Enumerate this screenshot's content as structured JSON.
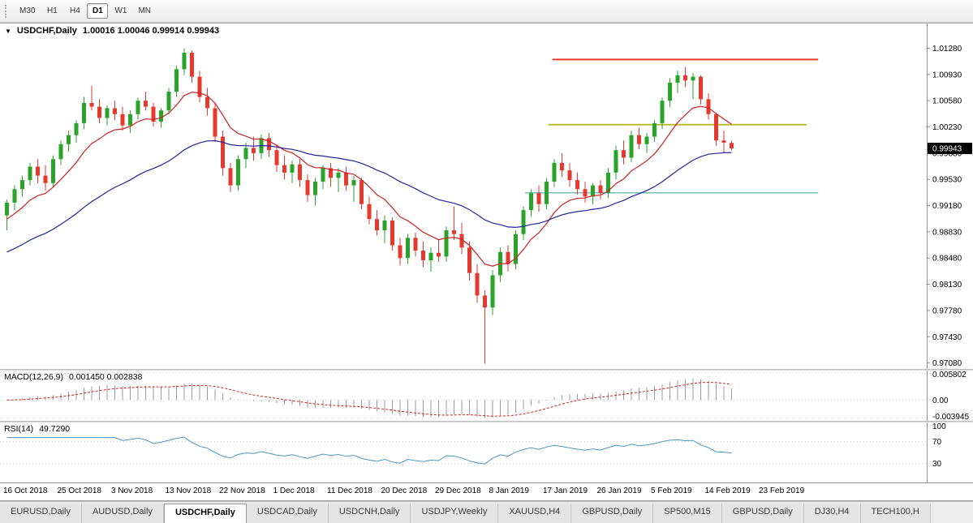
{
  "toolbar": {
    "timeframes": [
      {
        "label": "M30",
        "active": false
      },
      {
        "label": "H1",
        "active": false
      },
      {
        "label": "H4",
        "active": false
      },
      {
        "label": "D1",
        "active": true
      },
      {
        "label": "W1",
        "active": false
      },
      {
        "label": "MN",
        "active": false
      }
    ]
  },
  "chart": {
    "title_symbol": "USDCHF,Daily",
    "title_ohlc": "1.00016 1.00046 0.99914 0.99943",
    "price_badge": "0.99943"
  },
  "colors": {
    "candle_up": "#29a329",
    "candle_down": "#e5392d",
    "ma_fast": "#cc2222",
    "ma_slow": "#24249c",
    "macd_histogram": "#9b9b9b",
    "macd_signal": "#cc2222",
    "rsi_line": "#4a96c8",
    "badge_bg": "#000000",
    "badge_text": "#ffffff"
  },
  "chart_data": {
    "type": "candlestick",
    "title": "USDCHF,Daily",
    "symbol": "USDCHF",
    "timeframe": "Daily",
    "price_axis": {
      "view_max": 1.0161,
      "view_min": 0.97,
      "tick_labels": [
        "1.01280",
        "1.00930",
        "1.00580",
        "1.00230",
        "0.99880",
        "0.99530",
        "0.99180",
        "0.98830",
        "0.98480",
        "0.98130",
        "0.97780",
        "0.97430",
        "0.97080"
      ]
    },
    "x_labels": [
      {
        "text": "16 Oct 2018",
        "index": 0
      },
      {
        "text": "25 Oct 2018",
        "index": 7
      },
      {
        "text": "3 Nov 2018",
        "index": 14
      },
      {
        "text": "13 Nov 2018",
        "index": 21
      },
      {
        "text": "22 Nov 2018",
        "index": 28
      },
      {
        "text": "1 Dec 2018",
        "index": 35
      },
      {
        "text": "11 Dec 2018",
        "index": 42
      },
      {
        "text": "20 Dec 2018",
        "index": 49
      },
      {
        "text": "29 Dec 2018",
        "index": 56
      },
      {
        "text": "8 Jan 2019",
        "index": 63
      },
      {
        "text": "17 Jan 2019",
        "index": 70
      },
      {
        "text": "26 Jan 2019",
        "index": 77
      },
      {
        "text": "5 Feb 2019",
        "index": 84
      },
      {
        "text": "14 Feb 2019",
        "index": 91
      },
      {
        "text": "23 Feb 2019",
        "index": 98
      }
    ],
    "hlines": [
      {
        "name": "upper-resistance-line",
        "price": 1.0113,
        "start_index": 71,
        "end_index": 105.5,
        "color": "#f23b2f",
        "width": 2
      },
      {
        "name": "middle-pivot-line",
        "price": 1.0026,
        "start_index": 70.5,
        "end_index": 104,
        "color": "#bcbe2c",
        "width": 2
      },
      {
        "name": "lower-support-line",
        "price": 0.9935,
        "start_index": 67.5,
        "end_index": 105.5,
        "color": "#2f9e9e",
        "width": 1
      }
    ],
    "candles": [
      [
        0.9905,
        0.9926,
        0.9885,
        0.9922
      ],
      [
        0.9922,
        0.9945,
        0.9912,
        0.994
      ],
      [
        0.994,
        0.9958,
        0.993,
        0.9952
      ],
      [
        0.9952,
        0.9975,
        0.9945,
        0.997
      ],
      [
        0.997,
        0.998,
        0.9948,
        0.9958
      ],
      [
        0.9958,
        0.9972,
        0.9938,
        0.9948
      ],
      [
        0.9948,
        0.9985,
        0.9942,
        0.998
      ],
      [
        0.998,
        1.0005,
        0.9972,
        1.0
      ],
      [
        1.0,
        1.0018,
        0.999,
        1.0012
      ],
      [
        1.0012,
        1.0032,
        1.0002,
        1.0028
      ],
      [
        1.0028,
        1.0063,
        1.002,
        1.0055
      ],
      [
        1.0055,
        1.0078,
        1.0045,
        1.005
      ],
      [
        1.005,
        1.006,
        1.0028,
        1.0035
      ],
      [
        1.0035,
        1.0052,
        1.0025,
        1.0048
      ],
      [
        1.0048,
        1.0058,
        1.0032,
        1.004
      ],
      [
        1.004,
        1.005,
        1.0018,
        1.0025
      ],
      [
        1.0025,
        1.0045,
        1.0015,
        1.004
      ],
      [
        1.004,
        1.0062,
        1.0033,
        1.0058
      ],
      [
        1.0058,
        1.007,
        1.0045,
        1.005
      ],
      [
        1.005,
        1.0055,
        1.0023,
        1.003
      ],
      [
        1.003,
        1.0048,
        1.0022,
        1.0045
      ],
      [
        1.0045,
        1.0075,
        1.004,
        1.007
      ],
      [
        1.007,
        1.0105,
        1.0063,
        1.01
      ],
      [
        1.01,
        1.0128,
        1.0092,
        1.0122
      ],
      [
        1.0122,
        1.0125,
        1.0082,
        1.009
      ],
      [
        1.009,
        1.0098,
        1.0056,
        1.0063
      ],
      [
        1.0063,
        1.0075,
        1.0038,
        1.0048
      ],
      [
        1.0048,
        1.0055,
        1.0003,
        1.001
      ],
      [
        1.001,
        1.0018,
        0.9958,
        0.9968
      ],
      [
        0.9968,
        0.9975,
        0.9936,
        0.9945
      ],
      [
        0.9945,
        0.9985,
        0.9938,
        0.998
      ],
      [
        0.998,
        1.0002,
        0.9968,
        0.9995
      ],
      [
        0.9995,
        1.001,
        0.9978,
        0.9988
      ],
      [
        0.9988,
        1.0013,
        0.998,
        1.0008
      ],
      [
        1.0008,
        1.0015,
        0.9983,
        0.9992
      ],
      [
        0.9992,
        1.0,
        0.9963,
        0.9972
      ],
      [
        0.9972,
        0.9985,
        0.9953,
        0.9962
      ],
      [
        0.9962,
        0.9978,
        0.9948,
        0.9973
      ],
      [
        0.9973,
        0.998,
        0.9943,
        0.9952
      ],
      [
        0.9952,
        0.996,
        0.9923,
        0.9932
      ],
      [
        0.9932,
        0.9955,
        0.9918,
        0.995
      ],
      [
        0.995,
        0.9972,
        0.994,
        0.9968
      ],
      [
        0.9968,
        0.9975,
        0.9943,
        0.9955
      ],
      [
        0.9955,
        0.9968,
        0.9936,
        0.9962
      ],
      [
        0.9962,
        0.997,
        0.9938,
        0.9945
      ],
      [
        0.9945,
        0.9958,
        0.9923,
        0.9952
      ],
      [
        0.9952,
        0.9955,
        0.9913,
        0.992
      ],
      [
        0.992,
        0.993,
        0.9893,
        0.99
      ],
      [
        0.99,
        0.9912,
        0.9878,
        0.9885
      ],
      [
        0.9885,
        0.9905,
        0.9868,
        0.9898
      ],
      [
        0.9898,
        0.9902,
        0.9858,
        0.9865
      ],
      [
        0.9865,
        0.9875,
        0.9838,
        0.9848
      ],
      [
        0.9848,
        0.988,
        0.984,
        0.9875
      ],
      [
        0.9875,
        0.9882,
        0.985,
        0.9858
      ],
      [
        0.9858,
        0.987,
        0.9836,
        0.9845
      ],
      [
        0.9845,
        0.9862,
        0.983,
        0.9855
      ],
      [
        0.9855,
        0.9872,
        0.9843,
        0.985
      ],
      [
        0.985,
        0.989,
        0.9843,
        0.9885
      ],
      [
        0.9885,
        0.9917,
        0.9872,
        0.988
      ],
      [
        0.988,
        0.9895,
        0.9853,
        0.9862
      ],
      [
        0.9862,
        0.987,
        0.9818,
        0.9828
      ],
      [
        0.9828,
        0.984,
        0.9788,
        0.9798
      ],
      [
        0.9798,
        0.9805,
        0.9707,
        0.9782
      ],
      [
        0.9782,
        0.9832,
        0.9772,
        0.9825
      ],
      [
        0.9825,
        0.9862,
        0.9816,
        0.9856
      ],
      [
        0.9856,
        0.9865,
        0.983,
        0.984
      ],
      [
        0.984,
        0.9885,
        0.9833,
        0.988
      ],
      [
        0.988,
        0.9917,
        0.9872,
        0.9912
      ],
      [
        0.9912,
        0.994,
        0.9903,
        0.9935
      ],
      [
        0.9935,
        0.9945,
        0.991,
        0.992
      ],
      [
        0.992,
        0.9955,
        0.9913,
        0.995
      ],
      [
        0.995,
        0.998,
        0.9943,
        0.9975
      ],
      [
        0.9975,
        0.9988,
        0.9956,
        0.9965
      ],
      [
        0.9965,
        0.9975,
        0.9943,
        0.9952
      ],
      [
        0.9952,
        0.9962,
        0.9933,
        0.994
      ],
      [
        0.994,
        0.995,
        0.9922,
        0.993
      ],
      [
        0.993,
        0.9948,
        0.992,
        0.9945
      ],
      [
        0.9945,
        0.9952,
        0.9926,
        0.9935
      ],
      [
        0.9935,
        0.9968,
        0.9928,
        0.9962
      ],
      [
        0.9962,
        0.9998,
        0.9953,
        0.9992
      ],
      [
        0.9992,
        1.0005,
        0.9973,
        0.9982
      ],
      [
        0.9982,
        1.0018,
        0.9976,
        1.0012
      ],
      [
        1.0012,
        1.0022,
        0.9993,
        1.0
      ],
      [
        1.0,
        1.0015,
        0.9988,
        1.001
      ],
      [
        1.001,
        1.0032,
        1.0003,
        1.0028
      ],
      [
        1.0028,
        1.0062,
        1.002,
        1.0058
      ],
      [
        1.0058,
        1.0088,
        1.005,
        1.0082
      ],
      [
        1.0082,
        1.0098,
        1.0068,
        1.0092
      ],
      [
        1.0092,
        1.0103,
        1.0076,
        1.0085
      ],
      [
        1.0085,
        1.0095,
        1.006,
        1.009
      ],
      [
        1.009,
        1.0092,
        1.0053,
        1.006
      ],
      [
        1.006,
        1.0068,
        1.0033,
        1.004
      ],
      [
        1.004,
        1.0042,
        0.9998,
        1.0005
      ],
      [
        1.0005,
        1.0018,
        0.9989,
        1.0002
      ],
      [
        1.00016,
        1.00046,
        0.99914,
        0.99943
      ]
    ],
    "macd": {
      "label": "MACD(12,26,9)",
      "values_text": "0.001450 0.002838",
      "axis_labels": [
        "0.005802",
        "0.00",
        "-0.003945"
      ],
      "axis_values": [
        0.005802,
        0,
        -0.003945
      ]
    },
    "rsi": {
      "label": "RSI(14)",
      "value_text": "49.7290",
      "axis_labels": [
        "100",
        "70",
        "30"
      ],
      "axis_values": [
        100,
        70,
        30
      ],
      "levels": [
        70,
        30
      ]
    }
  },
  "tabs": [
    {
      "label": "EURUSD,Daily",
      "active": false
    },
    {
      "label": "AUDUSD,Daily",
      "active": false
    },
    {
      "label": "USDCHF,Daily",
      "active": true
    },
    {
      "label": "USDCAD,Daily",
      "active": false
    },
    {
      "label": "USDCNH,Daily",
      "active": false
    },
    {
      "label": "USDJPY,Weekly",
      "active": false
    },
    {
      "label": "XAUUSD,H4",
      "active": false
    },
    {
      "label": "GBPUSD,Daily",
      "active": false
    },
    {
      "label": "SP500,M15",
      "active": false
    },
    {
      "label": "GBPUSD,Daily",
      "active": false
    },
    {
      "label": "DJ30,H4",
      "active": false
    },
    {
      "label": "TECH100,H",
      "active": false
    }
  ]
}
